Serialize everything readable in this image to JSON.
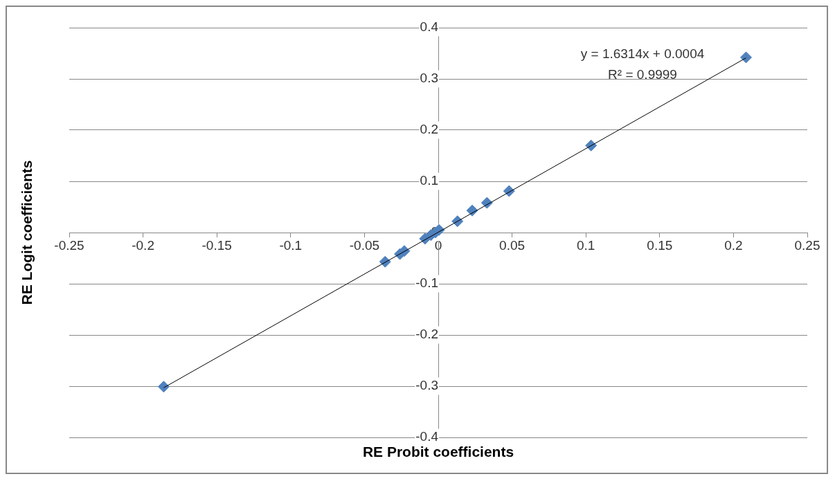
{
  "chart_data": {
    "type": "scatter",
    "xlabel": "RE Probit coefficients",
    "ylabel": "RE Logit coefficients",
    "annotations": [
      "y = 1.6314x + 0.0004",
      "R² = 0.9999"
    ],
    "series": [
      {
        "color": "#4f81bd",
        "x": [
          -0.186,
          -0.036,
          -0.026,
          -0.023,
          -0.009,
          -0.005,
          -0.002,
          0.0005,
          0.013,
          0.023,
          0.033,
          0.048,
          0.1035,
          0.2085
        ],
        "values": [
          -0.301,
          -0.057,
          -0.042,
          -0.036,
          -0.012,
          -0.005,
          0.0,
          0.005,
          0.022,
          0.043,
          0.058,
          0.081,
          0.17,
          0.342
        ]
      },
      {
        "type": "line",
        "marker": "none",
        "color": "#000000",
        "x": [
          -0.186,
          0.2085
        ],
        "values": [
          -0.303,
          0.341
        ]
      }
    ],
    "xlim": [
      -0.25,
      0.25
    ],
    "xticks": [
      -0.25,
      -0.2,
      -0.15,
      -0.1,
      -0.05,
      0,
      0.05,
      0.1,
      0.15,
      0.2,
      0.25
    ],
    "ylim": [
      -0.4,
      0.4
    ],
    "yticks": [
      -0.4,
      -0.3,
      -0.2,
      -0.1,
      0,
      0.1,
      0.2,
      0.3,
      0.4
    ],
    "grid": "y",
    "marker": "diamond",
    "legend": false
  }
}
